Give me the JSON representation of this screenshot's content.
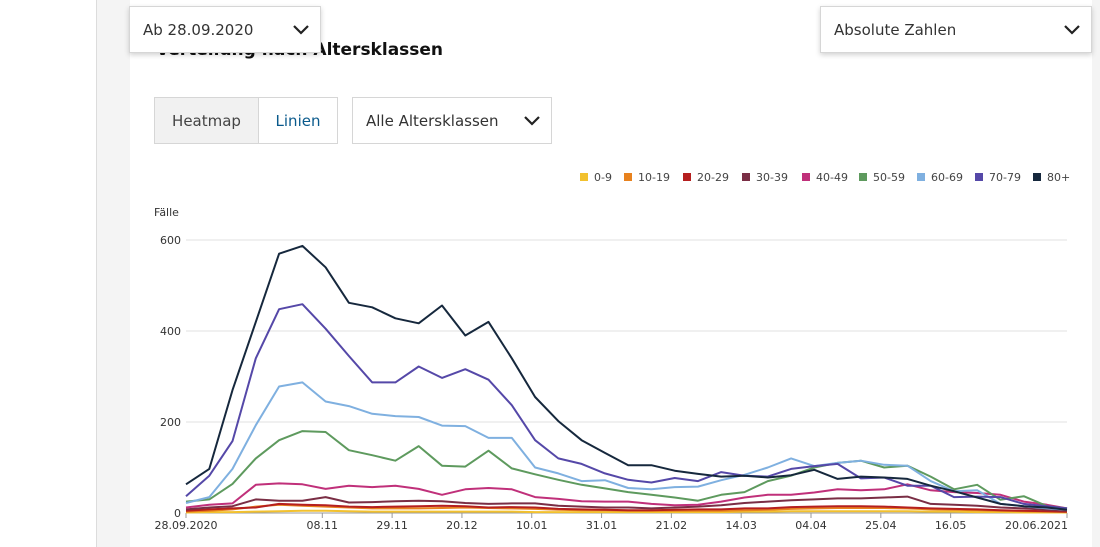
{
  "header": {
    "date_select": "Ab 28.09.2020",
    "mode_select": "Absolute Zahlen",
    "heading": "Verteilung nach Altersklassen"
  },
  "controls": {
    "heatmap_label": "Heatmap",
    "lines_label": "Linien",
    "age_select": "Alle Altersklassen"
  },
  "chart_data": {
    "type": "line",
    "ylabel": "Fälle",
    "ylim": [
      0,
      600
    ],
    "yticks": [
      0,
      200,
      400,
      600
    ],
    "xlim": [
      "2020-09-28",
      "2021-06-20"
    ],
    "x_tick_labels": [
      "28.09.2020",
      "08.11",
      "29.11",
      "20.12",
      "10.01",
      "31.01",
      "21.02",
      "14.03",
      "04.04",
      "25.04",
      "16.05",
      "20.06.2021"
    ],
    "x_tick_dates": [
      "2020-09-28",
      "2020-11-08",
      "2020-11-29",
      "2020-12-20",
      "2021-01-10",
      "2021-01-31",
      "2021-02-21",
      "2021-03-14",
      "2021-04-04",
      "2021-04-25",
      "2021-05-16",
      "2021-06-20"
    ],
    "x": [
      "2020-09-28",
      "2020-10-05",
      "2020-10-12",
      "2020-10-19",
      "2020-10-26",
      "2020-11-02",
      "2020-11-09",
      "2020-11-16",
      "2020-11-23",
      "2020-11-30",
      "2020-12-07",
      "2020-12-14",
      "2020-12-21",
      "2020-12-28",
      "2021-01-04",
      "2021-01-11",
      "2021-01-18",
      "2021-01-25",
      "2021-02-01",
      "2021-02-08",
      "2021-02-15",
      "2021-02-22",
      "2021-03-01",
      "2021-03-08",
      "2021-03-15",
      "2021-03-22",
      "2021-03-29",
      "2021-04-05",
      "2021-04-12",
      "2021-04-19",
      "2021-04-26",
      "2021-05-03",
      "2021-05-10",
      "2021-05-17",
      "2021-05-24",
      "2021-05-31",
      "2021-06-07",
      "2021-06-14",
      "2021-06-20"
    ],
    "legend_position": "top-right",
    "grid": true,
    "series": [
      {
        "name": "0-9",
        "color": "#f2c12e",
        "values": [
          1,
          2,
          2,
          3,
          4,
          5,
          5,
          4,
          3,
          3,
          3,
          3,
          3,
          3,
          3,
          2,
          2,
          2,
          2,
          2,
          2,
          2,
          2,
          2,
          3,
          3,
          4,
          4,
          4,
          4,
          4,
          4,
          3,
          3,
          2,
          2,
          1,
          1,
          1
        ]
      },
      {
        "name": "10-19",
        "color": "#e8821e",
        "values": [
          3,
          5,
          8,
          14,
          18,
          16,
          14,
          12,
          10,
          10,
          10,
          11,
          12,
          11,
          10,
          9,
          7,
          6,
          6,
          5,
          5,
          5,
          5,
          5,
          6,
          7,
          9,
          10,
          11,
          11,
          11,
          10,
          8,
          7,
          6,
          5,
          4,
          3,
          2
        ]
      },
      {
        "name": "20-29",
        "color": "#b51f1f",
        "values": [
          5,
          8,
          10,
          12,
          20,
          18,
          17,
          14,
          13,
          14,
          15,
          16,
          15,
          12,
          13,
          12,
          9,
          8,
          7,
          6,
          6,
          7,
          8,
          8,
          10,
          10,
          13,
          14,
          15,
          15,
          14,
          12,
          10,
          9,
          8,
          6,
          5,
          4,
          3
        ]
      },
      {
        "name": "30-39",
        "color": "#7a2e45",
        "values": [
          8,
          12,
          15,
          30,
          27,
          27,
          35,
          23,
          24,
          26,
          27,
          26,
          22,
          20,
          21,
          21,
          16,
          14,
          12,
          12,
          10,
          12,
          14,
          17,
          22,
          25,
          28,
          30,
          32,
          32,
          34,
          36,
          20,
          18,
          16,
          12,
          10,
          7,
          5
        ]
      },
      {
        "name": "40-49",
        "color": "#c0307a",
        "values": [
          12,
          18,
          21,
          62,
          65,
          63,
          53,
          60,
          57,
          60,
          53,
          40,
          52,
          55,
          52,
          35,
          31,
          26,
          25,
          25,
          20,
          17,
          18,
          25,
          34,
          40,
          40,
          45,
          52,
          50,
          52,
          63,
          50,
          46,
          44,
          40,
          25,
          18,
          10
        ]
      },
      {
        "name": "50-59",
        "color": "#5e9a5e",
        "values": [
          25,
          30,
          64,
          120,
          160,
          180,
          178,
          138,
          127,
          115,
          147,
          104,
          102,
          137,
          98,
          85,
          73,
          62,
          54,
          46,
          40,
          34,
          27,
          40,
          46,
          70,
          82,
          100,
          110,
          115,
          100,
          104,
          80,
          52,
          62,
          29,
          37,
          15,
          10
        ]
      },
      {
        "name": "60-69",
        "color": "#7fb0e0",
        "values": [
          22,
          35,
          97,
          193,
          278,
          287,
          245,
          235,
          218,
          213,
          211,
          192,
          191,
          165,
          165,
          100,
          87,
          70,
          72,
          55,
          52,
          57,
          58,
          72,
          84,
          100,
          120,
          103,
          110,
          115,
          106,
          104,
          70,
          48,
          50,
          20,
          15,
          10,
          7
        ]
      },
      {
        "name": "70-79",
        "color": "#5548a8",
        "values": [
          37,
          82,
          158,
          340,
          448,
          459,
          405,
          345,
          287,
          287,
          322,
          297,
          316,
          293,
          237,
          160,
          120,
          108,
          87,
          73,
          67,
          77,
          70,
          90,
          82,
          80,
          97,
          103,
          108,
          76,
          78,
          60,
          60,
          35,
          36,
          35,
          20,
          15,
          10
        ]
      },
      {
        "name": "80+",
        "color": "#16283d",
        "values": [
          63,
          97,
          270,
          420,
          570,
          587,
          540,
          462,
          452,
          428,
          417,
          456,
          390,
          420,
          340,
          255,
          202,
          160,
          132,
          105,
          105,
          93,
          86,
          80,
          82,
          78,
          83,
          95,
          75,
          80,
          78,
          75,
          60,
          48,
          34,
          20,
          15,
          12,
          7
        ]
      }
    ]
  }
}
